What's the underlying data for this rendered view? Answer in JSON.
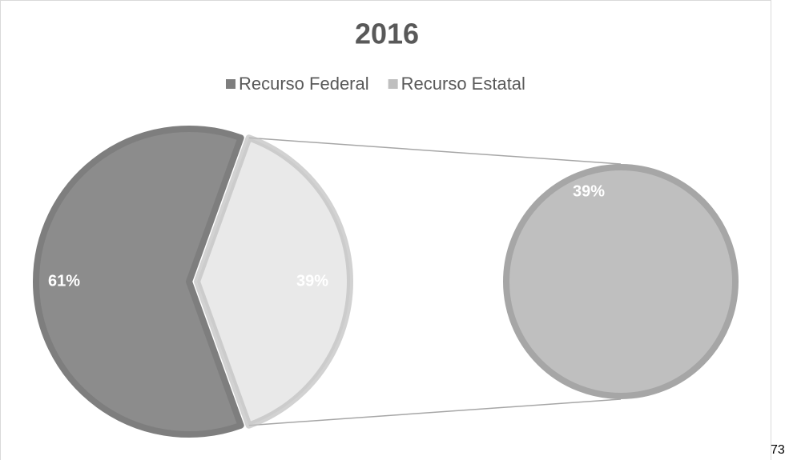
{
  "chart_data": {
    "type": "pie",
    "title": "2016",
    "categories": [
      "Recurso Federal",
      "Recurso Estatal"
    ],
    "values": [
      61,
      39
    ],
    "value_labels": [
      "61%",
      "39%"
    ],
    "colors": [
      "#8c8c8c",
      "#bfbfbf"
    ],
    "legend": "top"
  },
  "page_number": "73"
}
